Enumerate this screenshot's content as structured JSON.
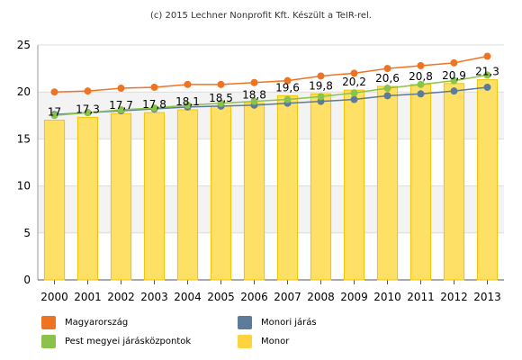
{
  "source_note": "(c) 2015 Lechner Nonprofit Kft. Készült a TeIR-rel.",
  "chart_data": {
    "type": "bar",
    "categories": [
      "2000",
      "2001",
      "2002",
      "2003",
      "2004",
      "2005",
      "2006",
      "2007",
      "2008",
      "2009",
      "2010",
      "2011",
      "2012",
      "2013"
    ],
    "ylim": [
      0,
      25
    ],
    "yticks": [
      0,
      5,
      10,
      15,
      20,
      25
    ],
    "grid": true,
    "legend_position": "bottom",
    "bar_series": {
      "name": "Monor",
      "color": "#FFE066",
      "values": [
        17,
        17.3,
        17.7,
        17.8,
        18.1,
        18.5,
        18.8,
        19.6,
        19.8,
        20.2,
        20.6,
        20.8,
        20.9,
        21.3
      ],
      "labels": [
        "17",
        "17,3",
        "17,7",
        "17,8",
        "18,1",
        "18,5",
        "18,8",
        "19,6",
        "19,8",
        "20,2",
        "20,6",
        "20,8",
        "20,9",
        "21,3"
      ]
    },
    "line_series": [
      {
        "name": "Magyarország",
        "color": "#F07321",
        "values": [
          20.0,
          20.1,
          20.4,
          20.5,
          20.8,
          20.8,
          21.0,
          21.2,
          21.7,
          22.0,
          22.5,
          22.8,
          23.1,
          23.8
        ]
      },
      {
        "name": "Pest megyei járásközpontok",
        "color": "#8BC34A",
        "values": [
          17.5,
          17.8,
          18.1,
          18.3,
          18.6,
          18.8,
          19.0,
          19.2,
          19.5,
          19.9,
          20.4,
          20.8,
          21.2,
          21.8
        ]
      },
      {
        "name": "Monori járás",
        "color": "#5C7A99",
        "values": [
          17.6,
          17.8,
          18.0,
          18.2,
          18.4,
          18.5,
          18.6,
          18.8,
          19.0,
          19.2,
          19.6,
          19.8,
          20.1,
          20.5
        ]
      }
    ]
  },
  "legend": {
    "items": [
      {
        "label": "Magyarország",
        "color": "#F07321"
      },
      {
        "label": "Monori járás",
        "color": "#5C7A99"
      },
      {
        "label": "Pest megyei járásközpontok",
        "color": "#8BC34A"
      },
      {
        "label": "Monor",
        "color": "#FFD23F"
      }
    ]
  }
}
